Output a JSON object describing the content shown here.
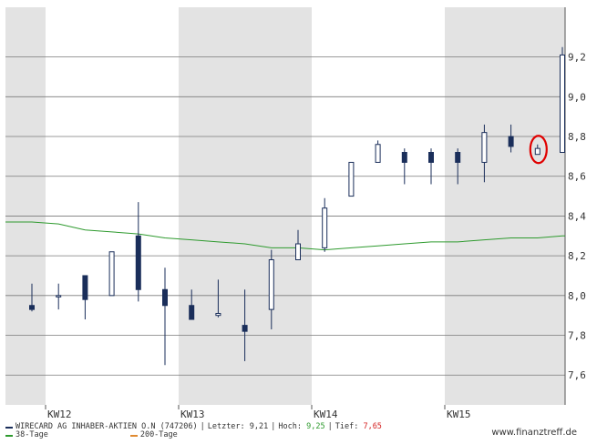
{
  "chart_data": {
    "type": "candlestick",
    "y_ticks": [
      "9,2",
      "9,0",
      "8,8",
      "8,6",
      "8,4",
      "8,2",
      "8,0",
      "7,8",
      "7,6"
    ],
    "y_tick_values": [
      9.2,
      9.0,
      8.8,
      8.6,
      8.4,
      8.2,
      8.0,
      7.8,
      7.6
    ],
    "ylim": [
      7.45,
      9.45
    ],
    "weeks": [
      "KW12",
      "KW13",
      "KW14",
      "KW15"
    ],
    "candles": [
      {
        "open": 7.95,
        "close": 7.93,
        "high": 8.06,
        "low": 7.92
      },
      {
        "open": 8.0,
        "close": 8.0,
        "high": 8.06,
        "low": 7.93
      },
      {
        "open": 8.1,
        "close": 7.98,
        "high": 8.1,
        "low": 7.88
      },
      {
        "open": 8.0,
        "close": 8.22,
        "high": 8.22,
        "low": 8.0
      },
      {
        "open": 8.3,
        "close": 8.03,
        "high": 8.47,
        "low": 7.97
      },
      {
        "open": 8.03,
        "close": 7.95,
        "high": 8.14,
        "low": 7.65
      },
      {
        "open": 7.95,
        "close": 7.88,
        "high": 8.03,
        "low": 7.88
      },
      {
        "open": 7.9,
        "close": 7.91,
        "high": 8.08,
        "low": 7.89
      },
      {
        "open": 7.85,
        "close": 7.82,
        "high": 8.03,
        "low": 7.67
      },
      {
        "open": 7.93,
        "close": 8.18,
        "high": 8.23,
        "low": 7.83
      },
      {
        "open": 8.18,
        "close": 8.26,
        "high": 8.33,
        "low": 8.18
      },
      {
        "open": 8.24,
        "close": 8.44,
        "high": 8.49,
        "low": 8.22
      },
      {
        "open": 8.5,
        "close": 8.67,
        "high": 8.67,
        "low": 8.5
      },
      {
        "open": 8.67,
        "close": 8.76,
        "high": 8.78,
        "low": 8.67
      },
      {
        "open": 8.72,
        "close": 8.67,
        "high": 8.74,
        "low": 8.56
      },
      {
        "open": 8.72,
        "close": 8.67,
        "high": 8.74,
        "low": 8.56
      },
      {
        "open": 8.72,
        "close": 8.67,
        "high": 8.74,
        "low": 8.56
      },
      {
        "open": 8.67,
        "close": 8.82,
        "high": 8.86,
        "low": 8.57
      },
      {
        "open": 8.8,
        "close": 8.75,
        "high": 8.86,
        "low": 8.72
      },
      {
        "open": 8.71,
        "close": 8.74,
        "high": 8.76,
        "low": 8.71
      },
      {
        "open": 8.72,
        "close": 9.21,
        "high": 9.25,
        "low": 8.72
      }
    ],
    "sma38": [
      8.37,
      8.36,
      8.33,
      8.32,
      8.31,
      8.29,
      8.28,
      8.27,
      8.26,
      8.24,
      8.24,
      8.23,
      8.24,
      8.25,
      8.26,
      8.27,
      8.27,
      8.28,
      8.29,
      8.29,
      8.3
    ],
    "series": [
      {
        "name": "WIRECARD AG INHABER-AKTIEN O.N (747206)",
        "color": "#1a2e5a"
      },
      {
        "name": "38-Tage",
        "color": "#2e9a2e"
      },
      {
        "name": "200-Tage",
        "color": "#e08a30"
      }
    ],
    "grid": true
  },
  "legend": {
    "stock_name": "WIRECARD AG INHABER-AKTIEN O.N (747206)",
    "last_label": "Letzter:",
    "last_value": "9,21",
    "high_label": "Hoch:",
    "high_value": "9,25",
    "low_label": "Tief:",
    "low_value": "7,65",
    "sma38_label": "38-Tage",
    "sma200_label": "200-Tage"
  },
  "brand": "www.finanztreff.de",
  "colors": {
    "shade": "#e3e3e3",
    "grid": "#7a7a7a",
    "candle": "#1a2e5a",
    "sma38": "#2e9a2e",
    "sma200": "#e08a30",
    "highlight": "#e00000"
  }
}
